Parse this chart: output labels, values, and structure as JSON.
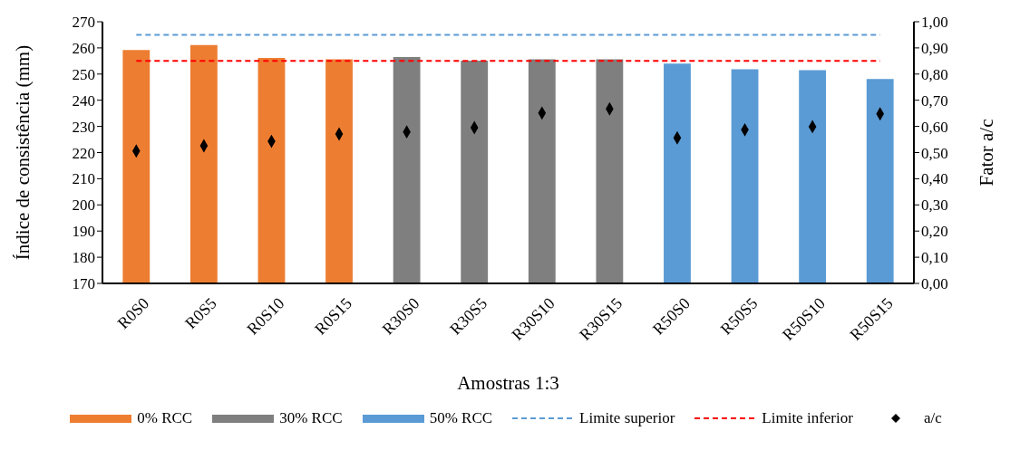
{
  "chart_data": {
    "type": "bar",
    "xlabel": "Amostras 1:3",
    "ylabel": "Índice de consistência (mm)",
    "y2label": "Fator a/c",
    "categories": [
      "R0S0",
      "R0S5",
      "R0S10",
      "R0S15",
      "R30S0",
      "R30S5",
      "R30S10",
      "R30S15",
      "R50S0",
      "R50S5",
      "R50S10",
      "R50S15"
    ],
    "stacked": true,
    "series": [
      {
        "name": "0% RCC",
        "color": "#ed7d31",
        "values": [
          259.2,
          261.1,
          256.2,
          255.6,
          null,
          null,
          null,
          null,
          null,
          null,
          null,
          null
        ]
      },
      {
        "name": "30% RCC",
        "color": "#7f7f7f",
        "values": [
          null,
          null,
          null,
          null,
          256.5,
          255.1,
          255.6,
          255.6,
          null,
          null,
          null,
          null
        ]
      },
      {
        "name": "50% RCC",
        "color": "#5b9bd5",
        "values": [
          null,
          null,
          null,
          null,
          null,
          null,
          null,
          null,
          254.0,
          251.8,
          251.5,
          248.1
        ]
      },
      {
        "name": "a/c",
        "type": "scatter",
        "axis": "y2",
        "color": "#000000",
        "marker": "diamond",
        "values": [
          0.506,
          0.526,
          0.543,
          0.571,
          0.579,
          0.595,
          0.651,
          0.667,
          0.556,
          0.587,
          0.599,
          0.648
        ]
      }
    ],
    "ref_lines": [
      {
        "axis": "y",
        "value": 265,
        "label": "Limite superior",
        "color": "#5b9bd5",
        "line_style": "dashed"
      },
      {
        "axis": "y",
        "value": 255,
        "label": "Limite inferior",
        "color": "#ff0000",
        "line_style": "dashed"
      }
    ],
    "ylim": [
      170,
      270
    ],
    "yticks": [
      170,
      180,
      190,
      200,
      210,
      220,
      230,
      240,
      250,
      260,
      270
    ],
    "y2lim": [
      0,
      1
    ],
    "y2ticks": [
      {
        "value": 0,
        "label": "0,00"
      },
      {
        "value": 0.1,
        "label": "0,10"
      },
      {
        "value": 0.2,
        "label": "0,20"
      },
      {
        "value": 0.3,
        "label": "0,30"
      },
      {
        "value": 0.4,
        "label": "0,40"
      },
      {
        "value": 0.5,
        "label": "0,50"
      },
      {
        "value": 0.6,
        "label": "0,60"
      },
      {
        "value": 0.7,
        "label": "0,70"
      },
      {
        "value": 0.8,
        "label": "0,80"
      },
      {
        "value": 0.9,
        "label": "0,90"
      },
      {
        "value": 1,
        "label": "1,00"
      }
    ],
    "grid": false,
    "legend": "bottom"
  }
}
